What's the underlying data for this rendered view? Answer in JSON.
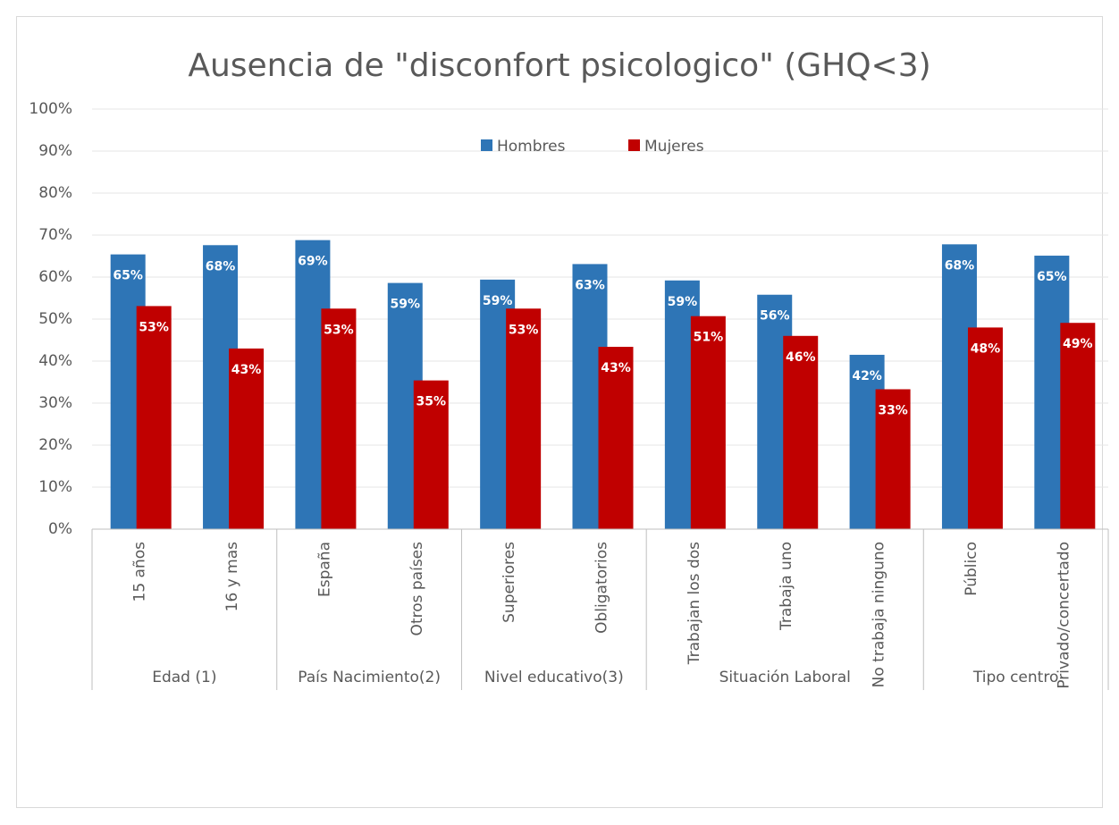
{
  "chart_data": {
    "type": "bar",
    "title": "Ausencia de \"disconfort psicologico\" (GHQ<3)",
    "categories": [
      "15 años",
      "16 y mas",
      "España",
      "Otros países",
      "Superiores",
      "Obligatorios",
      "Trabajan los dos",
      "Trabaja uno",
      "No trabaja ninguno",
      "Público",
      "Privado/concertado"
    ],
    "category_groups": [
      "Edad (1)",
      "Edad (1)",
      "País Nacimiento(2)",
      "País Nacimiento(2)",
      "Nivel educativo(3)",
      "Nivel educativo(3)",
      "Situación Laboral",
      "Situación Laboral",
      "Situación Laboral",
      "Tipo centro",
      "Tipo centro"
    ],
    "series": [
      {
        "name": "Hombres",
        "color": "#2e75b6",
        "values": [
          65.4,
          67.6,
          68.8,
          58.6,
          59.4,
          63.1,
          59.2,
          55.8,
          41.5,
          67.8,
          65.1
        ],
        "value_labels": [
          "65%",
          "68%",
          "69%",
          "59%",
          "59%",
          "63%",
          "59%",
          "56%",
          "42%",
          "68%",
          "65%"
        ]
      },
      {
        "name": "Mujeres",
        "color": "#c00000",
        "values": [
          53.1,
          43.0,
          52.5,
          35.4,
          52.5,
          43.4,
          50.7,
          46.0,
          33.3,
          48.0,
          49.1
        ],
        "value_labels": [
          "53%",
          "43%",
          "53%",
          "35%",
          "53%",
          "43%",
          "51%",
          "46%",
          "33%",
          "48%",
          "49%"
        ]
      }
    ],
    "ylim": [
      0,
      100
    ],
    "yticks": [
      {
        "value": 0,
        "label": "0%"
      },
      {
        "value": 10,
        "label": "10%"
      },
      {
        "value": 20,
        "label": "20%"
      },
      {
        "value": 30,
        "label": "30%"
      },
      {
        "value": 40,
        "label": "40%"
      },
      {
        "value": 50,
        "label": "50%"
      },
      {
        "value": 60,
        "label": "60%"
      },
      {
        "value": 70,
        "label": "70%"
      },
      {
        "value": 80,
        "label": "80%"
      },
      {
        "value": 90,
        "label": "90%"
      },
      {
        "value": 100,
        "label": "100%"
      }
    ],
    "grid": true,
    "legend": "top"
  }
}
